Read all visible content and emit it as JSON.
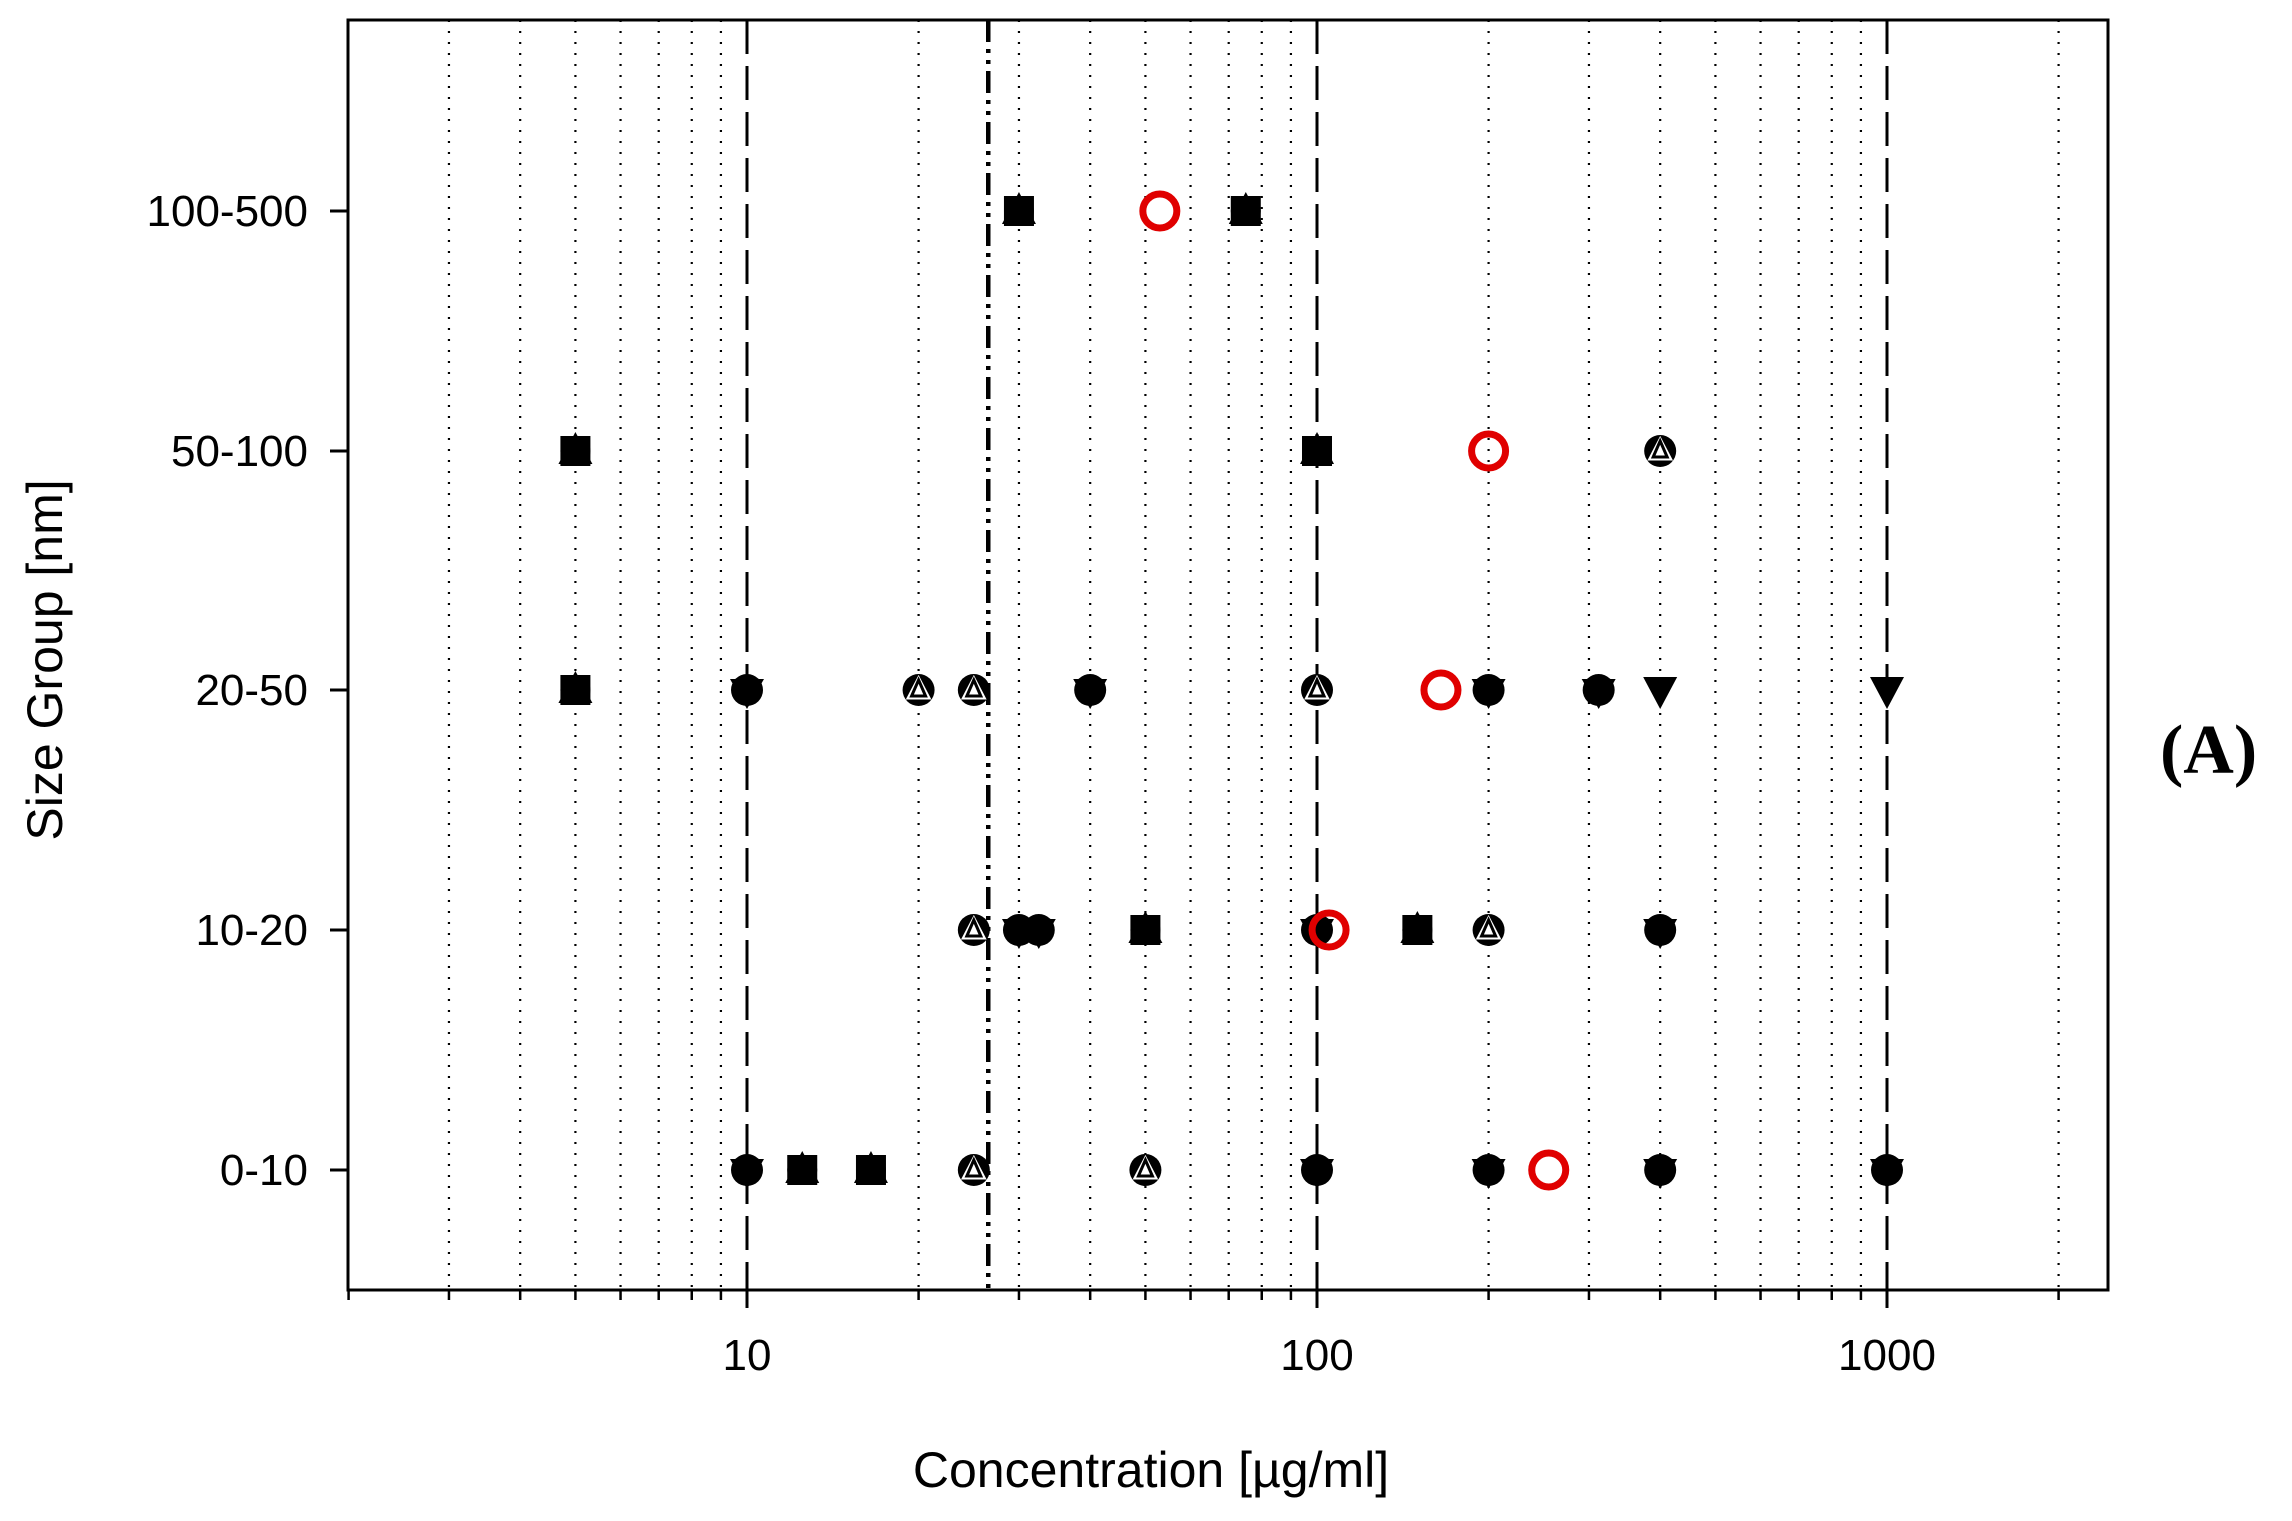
{
  "chart_data": {
    "type": "scatter",
    "title": "",
    "xlabel": "Concentration [µg/ml]",
    "ylabel": "Size Group [nm]",
    "xscale": "log",
    "xlim": [
      2,
      2500
    ],
    "x_tick_labels": [
      "10",
      "100",
      "1000"
    ],
    "x_ticks": [
      10,
      100,
      1000
    ],
    "categories": [
      "0-10",
      "10-20",
      "20-50",
      "50-100",
      "100-500"
    ],
    "grid": "vertical dotted at minor log ticks",
    "reference_lines": [
      {
        "x": 10,
        "style": "long-dash"
      },
      {
        "x": 100,
        "style": "long-dash"
      },
      {
        "x": 1000,
        "style": "long-dash"
      },
      {
        "x": 26.5,
        "style": "dash-dot-dot"
      }
    ],
    "panel_label": "(A)",
    "series": [
      {
        "name": "filled-square",
        "marker": "square",
        "color": "#000000",
        "points": [
          {
            "x": 30,
            "y": "100-500"
          },
          {
            "x": 75,
            "y": "100-500"
          },
          {
            "x": 5,
            "y": "50-100"
          },
          {
            "x": 100,
            "y": "50-100"
          },
          {
            "x": 5,
            "y": "20-50"
          },
          {
            "x": 50,
            "y": "10-20"
          },
          {
            "x": 150,
            "y": "10-20"
          },
          {
            "x": 12.5,
            "y": "0-10"
          },
          {
            "x": 16.5,
            "y": "0-10"
          }
        ]
      },
      {
        "name": "filled-circle",
        "marker": "circle",
        "color": "#000000",
        "points": [
          {
            "x": 10,
            "y": "20-50"
          },
          {
            "x": 40,
            "y": "20-50"
          },
          {
            "x": 200,
            "y": "20-50"
          },
          {
            "x": 312,
            "y": "20-50"
          },
          {
            "x": 30,
            "y": "10-20"
          },
          {
            "x": 32.5,
            "y": "10-20"
          },
          {
            "x": 100,
            "y": "10-20"
          },
          {
            "x": 400,
            "y": "10-20"
          },
          {
            "x": 10,
            "y": "0-10"
          },
          {
            "x": 100,
            "y": "0-10"
          },
          {
            "x": 200,
            "y": "0-10"
          },
          {
            "x": 400,
            "y": "0-10"
          },
          {
            "x": 1000,
            "y": "0-10"
          }
        ]
      },
      {
        "name": "open-triangle",
        "marker": "triangle-up-open",
        "color": "#000000",
        "points": [
          {
            "x": 400,
            "y": "50-100"
          },
          {
            "x": 20,
            "y": "20-50"
          },
          {
            "x": 25,
            "y": "20-50"
          },
          {
            "x": 100,
            "y": "20-50"
          },
          {
            "x": 25,
            "y": "10-20"
          },
          {
            "x": 200,
            "y": "10-20"
          },
          {
            "x": 25,
            "y": "0-10"
          },
          {
            "x": 50,
            "y": "0-10"
          }
        ]
      },
      {
        "name": "filled-triangle-down",
        "marker": "triangle-down",
        "color": "#000000",
        "points": [
          {
            "x": 400,
            "y": "20-50"
          },
          {
            "x": 1000,
            "y": "20-50"
          }
        ]
      },
      {
        "name": "red-open-circle",
        "marker": "circle-open",
        "color": "#e00000",
        "points": [
          {
            "x": 53,
            "y": "100-500"
          },
          {
            "x": 200,
            "y": "50-100"
          },
          {
            "x": 165,
            "y": "20-50"
          },
          {
            "x": 105,
            "y": "10-20"
          },
          {
            "x": 255,
            "y": "0-10"
          }
        ]
      }
    ]
  }
}
